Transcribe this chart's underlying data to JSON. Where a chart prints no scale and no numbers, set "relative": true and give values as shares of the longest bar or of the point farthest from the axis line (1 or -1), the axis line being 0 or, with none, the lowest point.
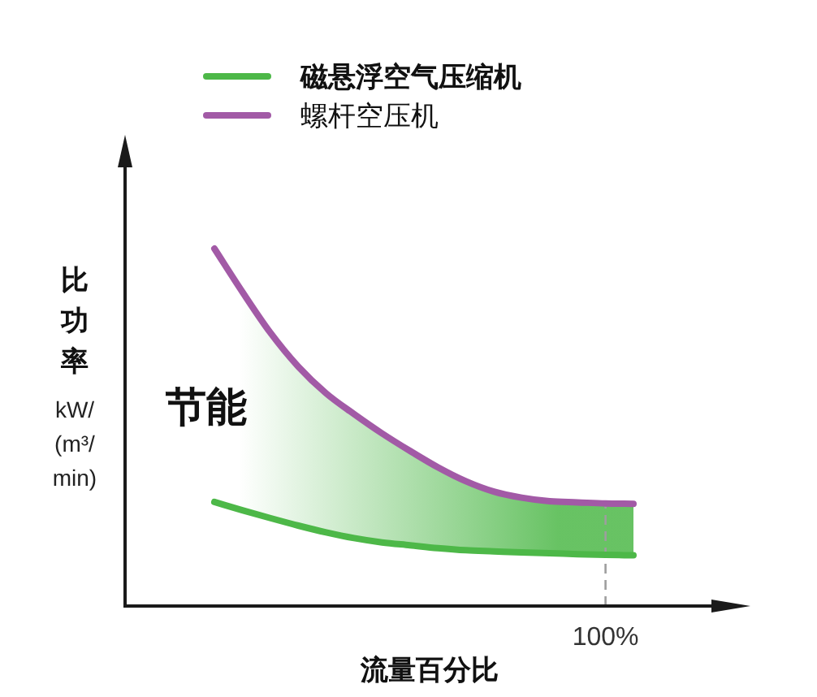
{
  "chart_data": {
    "type": "line",
    "relative": true,
    "legend": "top",
    "ylabel": "比功率\nkW/\n(m³/\nmin)",
    "xlabel": "流量百分比",
    "categories": [
      null,
      null,
      null,
      null,
      null,
      null,
      null,
      null,
      null,
      null,
      null,
      null,
      null,
      null,
      null,
      null
    ],
    "series": [
      {
        "name": "磁悬浮空气压缩机",
        "color": "#4db848",
        "values": [
          0.291,
          0.268,
          0.246,
          0.225,
          0.206,
          0.19,
          0.178,
          0.17,
          0.162,
          0.156,
          0.153,
          0.15,
          0.148,
          0.145,
          0.143,
          0.142
        ],
        "lower": [
          0.291,
          0.268,
          0.246,
          0.225,
          0.206,
          0.19,
          0.178,
          0.17,
          0.162,
          0.156,
          0.153,
          0.15,
          0.148,
          0.145,
          0.143,
          0.142
        ],
        "upper": [
          1.0,
          0.879,
          0.765,
          0.67,
          0.595,
          0.537,
          0.483,
          0.434,
          0.388,
          0.349,
          0.32,
          0.303,
          0.293,
          0.29,
          0.287,
          0.286
        ]
      },
      {
        "name": "螺杆空压机",
        "color": "#a25aa6",
        "values": [
          1.0,
          0.879,
          0.765,
          0.67,
          0.595,
          0.537,
          0.483,
          0.434,
          0.388,
          0.349,
          0.32,
          0.303,
          0.293,
          0.29,
          0.287,
          0.286
        ]
      }
    ],
    "annotations": [
      "节能",
      "100%"
    ]
  }
}
